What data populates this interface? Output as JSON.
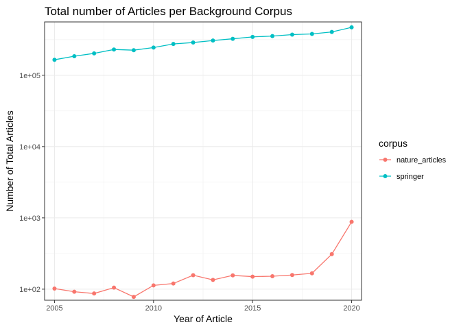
{
  "chart_data": {
    "type": "line",
    "title": "Total number of Articles per Background Corpus",
    "xlabel": "Year of Article",
    "ylabel": "Number of Total Articles",
    "x_scale": "linear",
    "y_scale": "log10",
    "xlim": [
      2004.5,
      2020.5
    ],
    "ylim": [
      70,
      560000
    ],
    "x_ticks": [
      2005,
      2010,
      2015,
      2020
    ],
    "x_tick_labels": [
      "2005",
      "2010",
      "2015",
      "2020"
    ],
    "y_ticks": [
      100,
      1000,
      10000,
      100000
    ],
    "y_tick_labels": [
      "1e+02",
      "1e+03",
      "1e+04",
      "1e+05"
    ],
    "grid": true,
    "legend": {
      "title": "corpus",
      "position": "right"
    },
    "x": [
      2005,
      2006,
      2007,
      2008,
      2009,
      2010,
      2011,
      2012,
      2013,
      2014,
      2015,
      2016,
      2017,
      2018,
      2019,
      2020
    ],
    "series": [
      {
        "name": "nature_articles",
        "color": "#F8766D",
        "values": [
          102,
          92,
          87,
          105,
          78,
          113,
          120,
          157,
          135,
          156,
          150,
          152,
          158,
          167,
          310,
          880
        ]
      },
      {
        "name": "springer",
        "color": "#00BFC4",
        "values": [
          165000,
          185000,
          203000,
          230000,
          225000,
          245000,
          275000,
          288000,
          307000,
          325000,
          345000,
          355000,
          372000,
          380000,
          405000,
          470000
        ]
      }
    ]
  }
}
